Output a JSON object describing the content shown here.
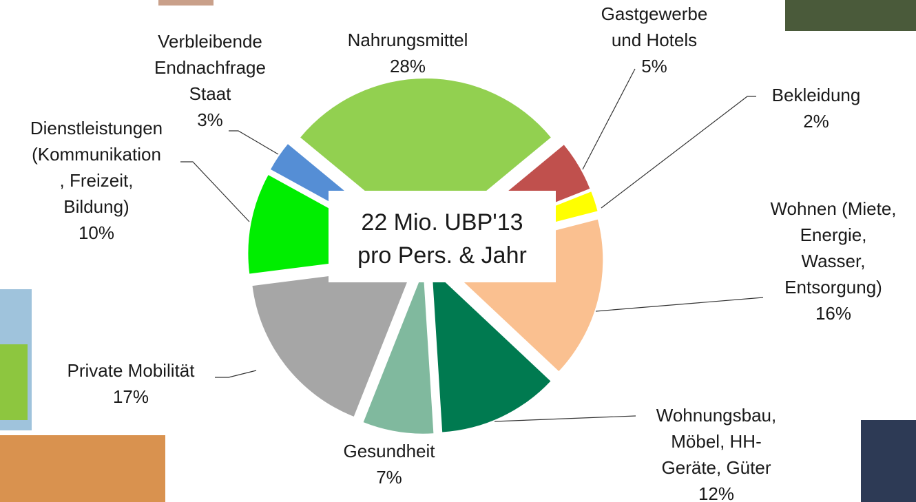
{
  "chart_data": {
    "type": "pie",
    "categories": [
      "Nahrungsmittel",
      "Gastgewerbe\nund Hotels",
      "Bekleidung",
      "Wohnen (Miete,\nEnergie,\nWasser,\nEntsorgung)",
      "Wohnungsbau,\nMöbel, HH-\nGeräte, Güter",
      "Gesundheit",
      "Private Mobilität",
      "Dienstleistungen\n(Kommunikation\n, Freizeit,\nBildung)",
      "Verbleibende\nEndnachfrage\nStaat"
    ],
    "values": [
      28,
      5,
      2,
      16,
      12,
      7,
      17,
      10,
      3
    ],
    "value_labels": [
      "28%",
      "5%",
      "2%",
      "16%",
      "12%",
      "7%",
      "17%",
      "10%",
      "3%"
    ],
    "colors": [
      "#92d050",
      "#c0504d",
      "#ffff00",
      "#fac090",
      "#007a50",
      "#80b99e",
      "#a6a6a6",
      "#00ee00",
      "#558ed5"
    ],
    "annotation": "22 Mio. UBP'13\npro Pers. & Jahr"
  }
}
